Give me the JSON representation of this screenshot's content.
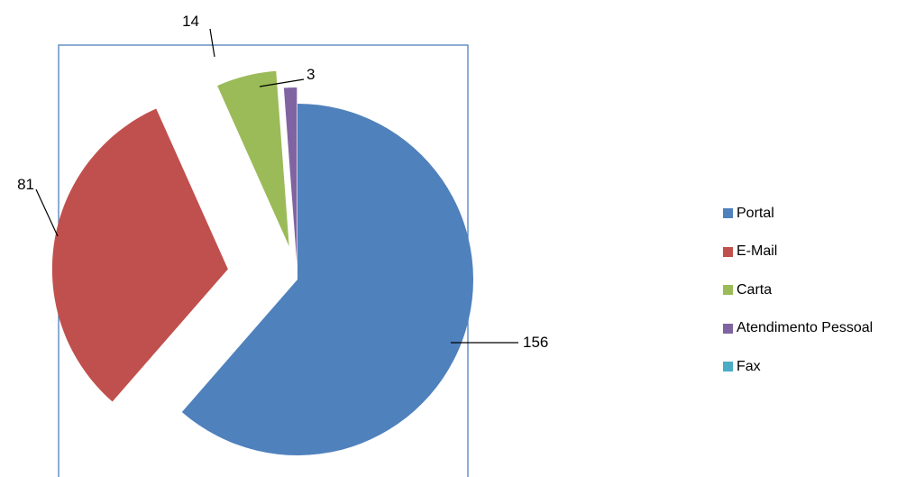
{
  "chart_data": {
    "type": "pie",
    "categories": [
      "Portal",
      "E-Mail",
      "Carta",
      "Atendimento Pessoal",
      "Fax"
    ],
    "values": [
      156,
      81,
      14,
      3,
      0
    ],
    "colors": [
      "#4F81BD",
      "#C0504D",
      "#9BBB59",
      "#8064A2",
      "#4BACC6"
    ],
    "data_labels": [
      "156",
      "81",
      "14",
      "3",
      ""
    ],
    "exploded": true,
    "legend_position": "right",
    "frame_color": "#4F81BD"
  }
}
